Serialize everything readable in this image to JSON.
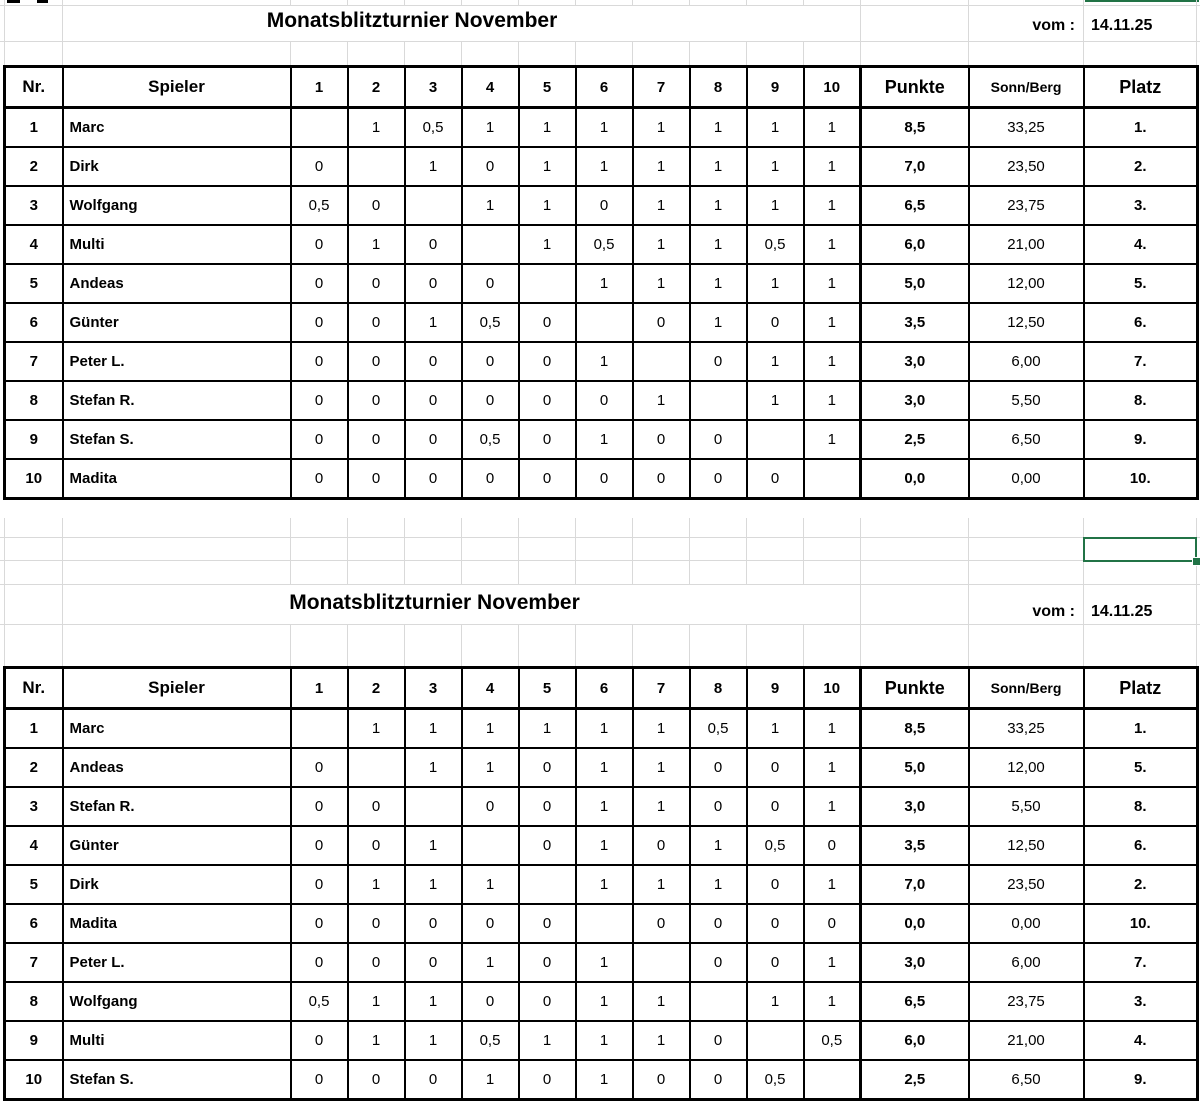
{
  "selection": {
    "accent_color": "#217346"
  },
  "tables": [
    {
      "title": "Monatsblitzturnier November",
      "date_label": "vom :",
      "date_value": "14.11.25",
      "headers": {
        "nr": "Nr.",
        "player": "Spieler",
        "rounds": [
          "1",
          "2",
          "3",
          "4",
          "5",
          "6",
          "7",
          "8",
          "9",
          "10"
        ],
        "points": "Punkte",
        "sonnberg": "Sonn/Berg",
        "place": "Platz"
      },
      "rows": [
        {
          "nr": "1",
          "player": "Marc",
          "diag": 0,
          "scores": [
            "",
            "1",
            "0,5",
            "1",
            "1",
            "1",
            "1",
            "1",
            "1",
            "1"
          ],
          "points": "8,5",
          "sonnberg": "33,25",
          "place": "1."
        },
        {
          "nr": "2",
          "player": "Dirk",
          "diag": 1,
          "scores": [
            "0",
            "",
            "1",
            "0",
            "1",
            "1",
            "1",
            "1",
            "1",
            "1"
          ],
          "points": "7,0",
          "sonnberg": "23,50",
          "place": "2."
        },
        {
          "nr": "3",
          "player": "Wolfgang",
          "diag": 2,
          "scores": [
            "0,5",
            "0",
            "",
            "1",
            "1",
            "0",
            "1",
            "1",
            "1",
            "1"
          ],
          "points": "6,5",
          "sonnberg": "23,75",
          "place": "3."
        },
        {
          "nr": "4",
          "player": "Multi",
          "diag": 3,
          "scores": [
            "0",
            "1",
            "0",
            "",
            "1",
            "0,5",
            "1",
            "1",
            "0,5",
            "1"
          ],
          "points": "6,0",
          "sonnberg": "21,00",
          "place": "4."
        },
        {
          "nr": "5",
          "player": "Andeas",
          "diag": 4,
          "scores": [
            "0",
            "0",
            "0",
            "0",
            "",
            "1",
            "1",
            "1",
            "1",
            "1"
          ],
          "points": "5,0",
          "sonnberg": "12,00",
          "place": "5."
        },
        {
          "nr": "6",
          "player": "Günter",
          "diag": 5,
          "scores": [
            "0",
            "0",
            "1",
            "0,5",
            "0",
            "",
            "0",
            "1",
            "0",
            "1"
          ],
          "points": "3,5",
          "sonnberg": "12,50",
          "place": "6."
        },
        {
          "nr": "7",
          "player": "Peter L.",
          "diag": 6,
          "scores": [
            "0",
            "0",
            "0",
            "0",
            "0",
            "1",
            "",
            "0",
            "1",
            "1"
          ],
          "points": "3,0",
          "sonnberg": "6,00",
          "place": "7."
        },
        {
          "nr": "8",
          "player": "Stefan R.",
          "diag": 7,
          "scores": [
            "0",
            "0",
            "0",
            "0",
            "0",
            "0",
            "1",
            "",
            "1",
            "1"
          ],
          "points": "3,0",
          "sonnberg": "5,50",
          "place": "8."
        },
        {
          "nr": "9",
          "player": "Stefan S.",
          "diag": 8,
          "scores": [
            "0",
            "0",
            "0",
            "0,5",
            "0",
            "1",
            "0",
            "0",
            "",
            "1"
          ],
          "points": "2,5",
          "sonnberg": "6,50",
          "place": "9."
        },
        {
          "nr": "10",
          "player": "Madita",
          "diag": 9,
          "scores": [
            "0",
            "0",
            "0",
            "0",
            "0",
            "0",
            "0",
            "0",
            "0",
            ""
          ],
          "points": "0,0",
          "sonnberg": "0,00",
          "place": "10."
        }
      ]
    },
    {
      "title": "Monatsblitzturnier November",
      "date_label": "vom :",
      "date_value": "14.11.25",
      "headers": {
        "nr": "Nr.",
        "player": "Spieler",
        "rounds": [
          "1",
          "2",
          "3",
          "4",
          "5",
          "6",
          "7",
          "8",
          "9",
          "10"
        ],
        "points": "Punkte",
        "sonnberg": "Sonn/Berg",
        "place": "Platz"
      },
      "rows": [
        {
          "nr": "1",
          "player": "Marc",
          "diag": 0,
          "scores": [
            "",
            "1",
            "1",
            "1",
            "1",
            "1",
            "1",
            "0,5",
            "1",
            "1"
          ],
          "points": "8,5",
          "sonnberg": "33,25",
          "place": "1."
        },
        {
          "nr": "2",
          "player": "Andeas",
          "diag": 1,
          "scores": [
            "0",
            "",
            "1",
            "1",
            "0",
            "1",
            "1",
            "0",
            "0",
            "1"
          ],
          "points": "5,0",
          "sonnberg": "12,00",
          "place": "5."
        },
        {
          "nr": "3",
          "player": "Stefan R.",
          "diag": 2,
          "scores": [
            "0",
            "0",
            "",
            "0",
            "0",
            "1",
            "1",
            "0",
            "0",
            "1"
          ],
          "points": "3,0",
          "sonnberg": "5,50",
          "place": "8."
        },
        {
          "nr": "4",
          "player": "Günter",
          "diag": 3,
          "scores": [
            "0",
            "0",
            "1",
            "",
            "0",
            "1",
            "0",
            "1",
            "0,5",
            "0"
          ],
          "points": "3,5",
          "sonnberg": "12,50",
          "place": "6."
        },
        {
          "nr": "5",
          "player": "Dirk",
          "diag": 4,
          "scores": [
            "0",
            "1",
            "1",
            "1",
            "",
            "1",
            "1",
            "1",
            "0",
            "1"
          ],
          "points": "7,0",
          "sonnberg": "23,50",
          "place": "2."
        },
        {
          "nr": "6",
          "player": "Madita",
          "diag": 5,
          "scores": [
            "0",
            "0",
            "0",
            "0",
            "0",
            "",
            "0",
            "0",
            "0",
            "0"
          ],
          "points": "0,0",
          "sonnberg": "0,00",
          "place": "10."
        },
        {
          "nr": "7",
          "player": "Peter L.",
          "diag": 6,
          "scores": [
            "0",
            "0",
            "0",
            "1",
            "0",
            "1",
            "",
            "0",
            "0",
            "1"
          ],
          "points": "3,0",
          "sonnberg": "6,00",
          "place": "7."
        },
        {
          "nr": "8",
          "player": "Wolfgang",
          "diag": 7,
          "scores": [
            "0,5",
            "1",
            "1",
            "0",
            "0",
            "1",
            "1",
            "",
            "1",
            "1"
          ],
          "points": "6,5",
          "sonnberg": "23,75",
          "place": "3."
        },
        {
          "nr": "9",
          "player": "Multi",
          "diag": 8,
          "scores": [
            "0",
            "1",
            "1",
            "0,5",
            "1",
            "1",
            "1",
            "0",
            "",
            "0,5"
          ],
          "points": "6,0",
          "sonnberg": "21,00",
          "place": "4."
        },
        {
          "nr": "10",
          "player": "Stefan S.",
          "diag": 9,
          "scores": [
            "0",
            "0",
            "0",
            "1",
            "0",
            "1",
            "0",
            "0",
            "0,5",
            ""
          ],
          "points": "2,5",
          "sonnberg": "6,50",
          "place": "9."
        }
      ]
    }
  ]
}
